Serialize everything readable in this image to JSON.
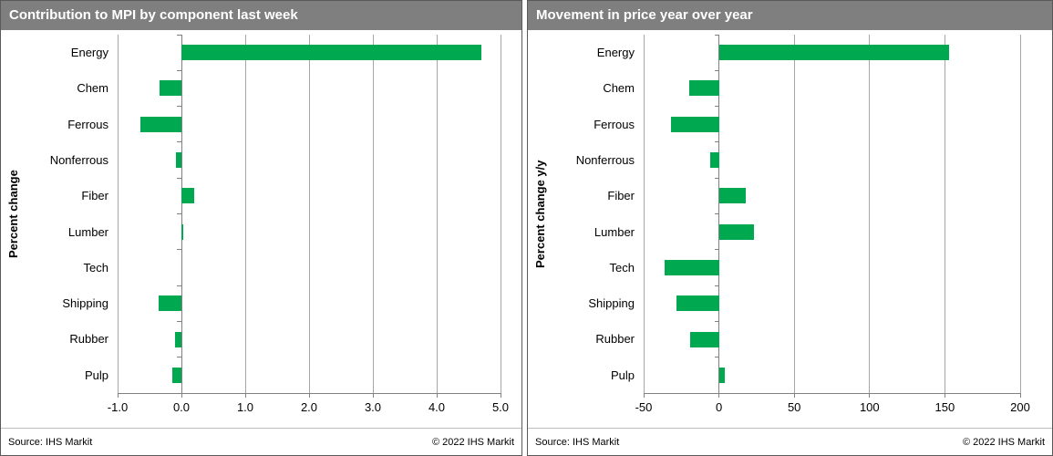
{
  "panels": [
    {
      "source": "Source: IHS Markit",
      "copyright": "© 2022  IHS Markit"
    },
    {
      "source": "Source: IHS Markit",
      "copyright": "© 2022  IHS Markit"
    }
  ],
  "chart_data": [
    {
      "type": "bar",
      "orientation": "horizontal",
      "title": "Contribution to MPI by component last week",
      "xlabel": "",
      "ylabel": "Percent change",
      "categories": [
        "Energy",
        "Chem",
        "Ferrous",
        "Nonferrous",
        "Fiber",
        "Lumber",
        "Tech",
        "Shipping",
        "Rubber",
        "Pulp"
      ],
      "values": [
        4.7,
        -0.35,
        -0.65,
        -0.08,
        0.2,
        0.03,
        0.0,
        -0.36,
        -0.1,
        -0.15
      ],
      "xlim": [
        -1.0,
        5.0
      ],
      "xticks": [
        -1,
        0,
        1,
        2,
        3,
        4,
        5
      ],
      "xtick_labels": [
        "-1.0",
        "0.0",
        "1.0",
        "2.0",
        "3.0",
        "4.0",
        "5.0"
      ],
      "grid": true,
      "legend": "none",
      "bar_color": "#00a84f"
    },
    {
      "type": "bar",
      "orientation": "horizontal",
      "title": "Movement in price year over year",
      "xlabel": "",
      "ylabel": "Percent change y/y",
      "categories": [
        "Energy",
        "Chem",
        "Ferrous",
        "Nonferrous",
        "Fiber",
        "Lumber",
        "Tech",
        "Shipping",
        "Rubber",
        "Pulp"
      ],
      "values": [
        153,
        -20,
        -32,
        -6,
        18,
        23,
        -36,
        -28,
        -19,
        4
      ],
      "xlim": [
        -50,
        200
      ],
      "xticks": [
        -50,
        0,
        50,
        100,
        150,
        200
      ],
      "xtick_labels": [
        "-50",
        "0",
        "50",
        "100",
        "150",
        "200"
      ],
      "grid": true,
      "legend": "none",
      "bar_color": "#00a84f"
    }
  ],
  "colors": {
    "header_bg": "#7f7f7f",
    "header_text": "#ffffff",
    "bar": "#00a84f",
    "gridline": "#a6a6a6",
    "axis": "#808080",
    "panel_border": "#595959",
    "text": "#000000"
  }
}
